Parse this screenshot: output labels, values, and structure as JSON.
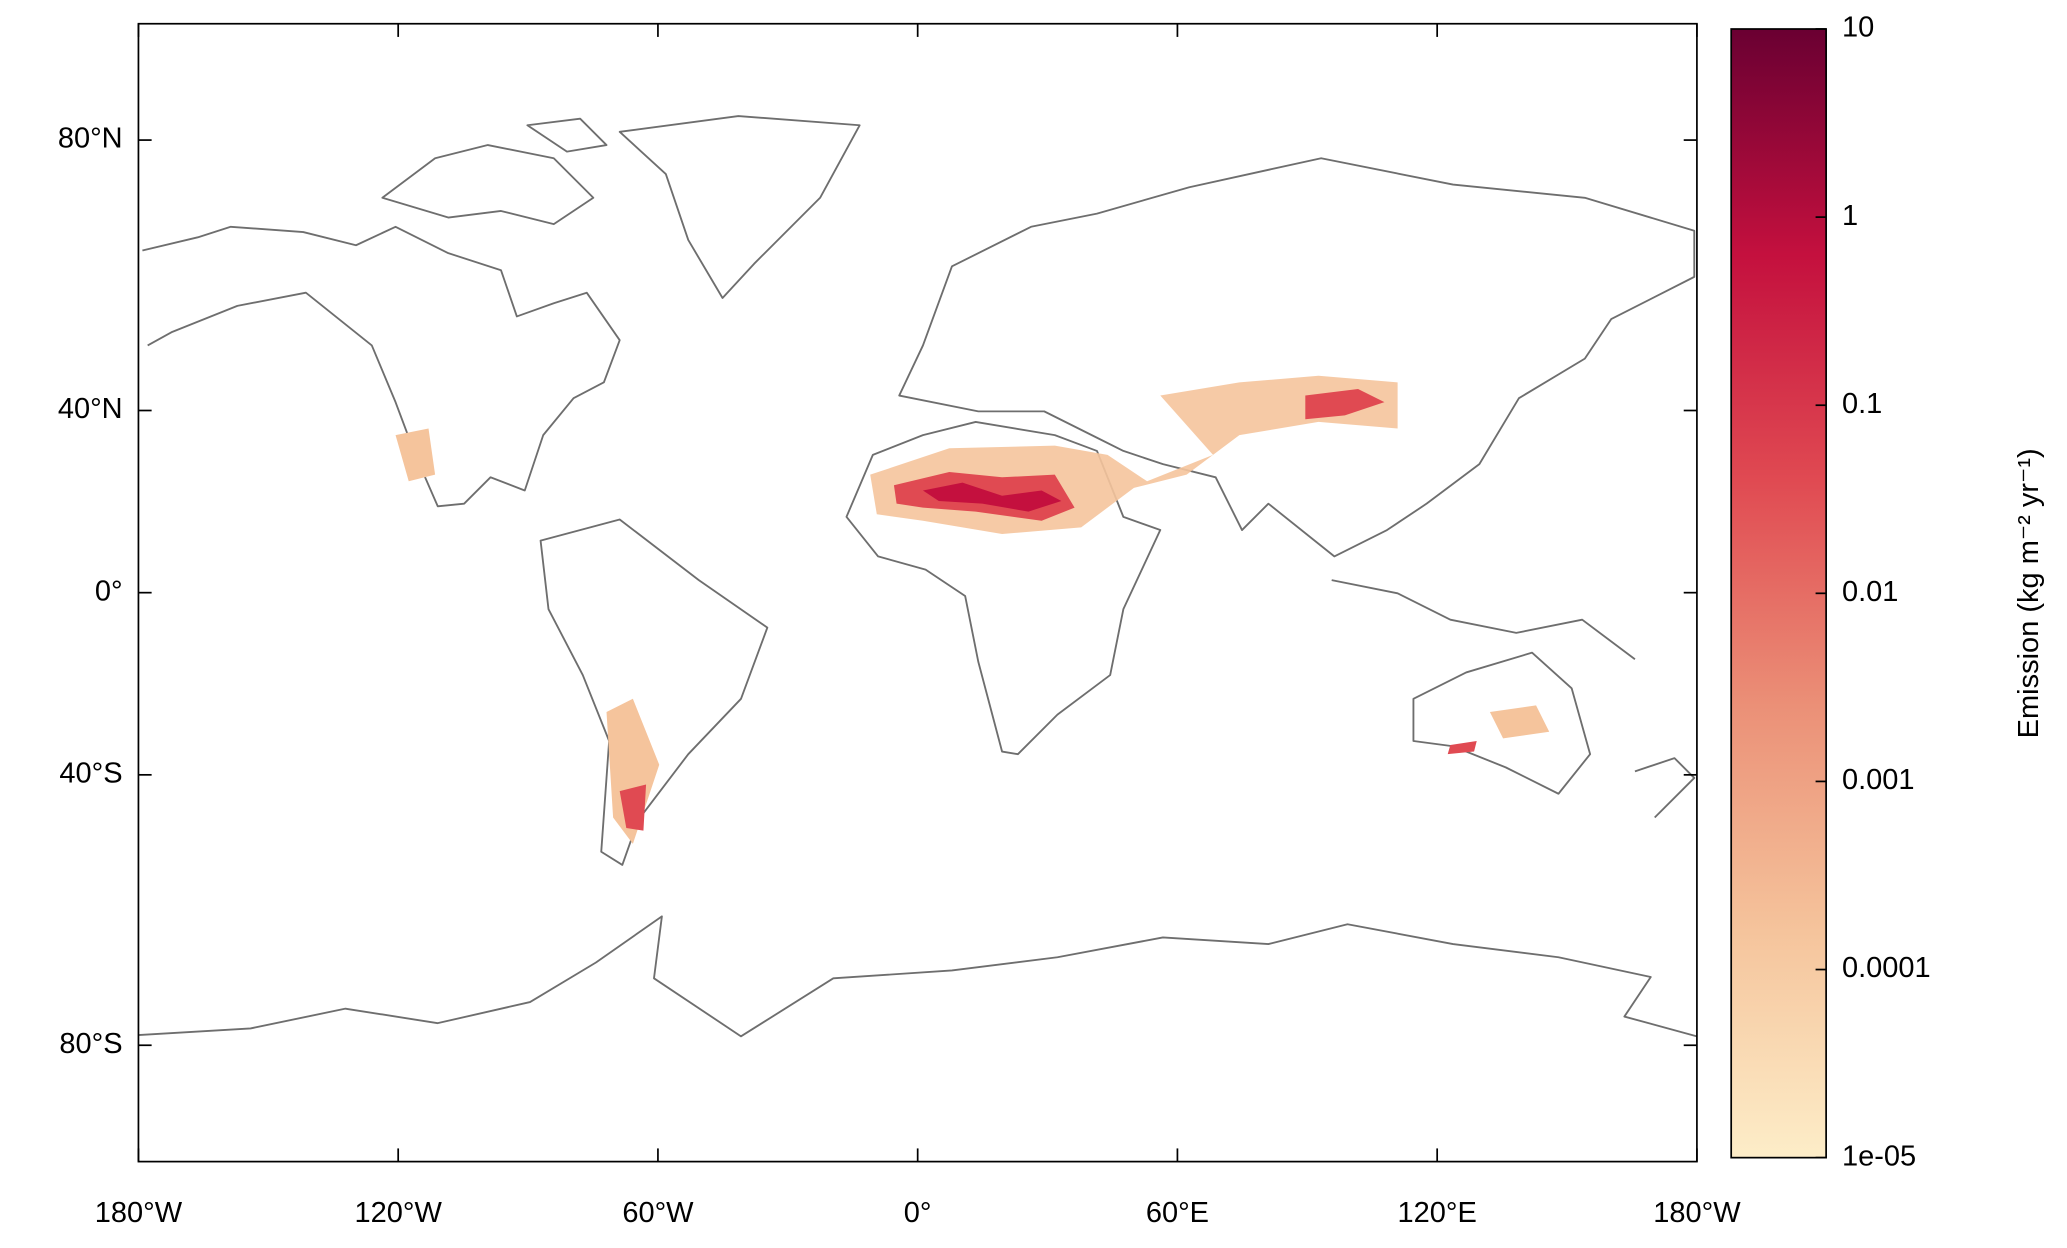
{
  "chart_data": {
    "type": "map",
    "projection": "miller",
    "xlim": [
      -180,
      180
    ],
    "ylim": [
      -90,
      90
    ],
    "xticks": [
      {
        "value": -180,
        "label": "180°W"
      },
      {
        "value": -120,
        "label": "120°W"
      },
      {
        "value": -60,
        "label": "60°W"
      },
      {
        "value": 0,
        "label": "0°"
      },
      {
        "value": 60,
        "label": "60°E"
      },
      {
        "value": 120,
        "label": "120°E"
      },
      {
        "value": 180,
        "label": "180°W"
      }
    ],
    "yticks": [
      {
        "value": 80,
        "label": "80°N"
      },
      {
        "value": 40,
        "label": "40°N"
      },
      {
        "value": 0,
        "label": "0°"
      },
      {
        "value": -40,
        "label": "40°S"
      },
      {
        "value": -80,
        "label": "80°S"
      }
    ],
    "colorbar": {
      "label": "Emission (kg m⁻² yr⁻¹)",
      "scale": "log",
      "lim": [
        1e-05,
        10
      ],
      "ticks": [
        10,
        1,
        0.1,
        0.01,
        0.001,
        0.0001,
        {
          "value": 1e-05,
          "label": "1e-05"
        }
      ],
      "colors": [
        "#fdedc8",
        "#f5c49c",
        "#eb9077",
        "#e04a52",
        "#c4103e",
        "#6a0032"
      ]
    }
  }
}
